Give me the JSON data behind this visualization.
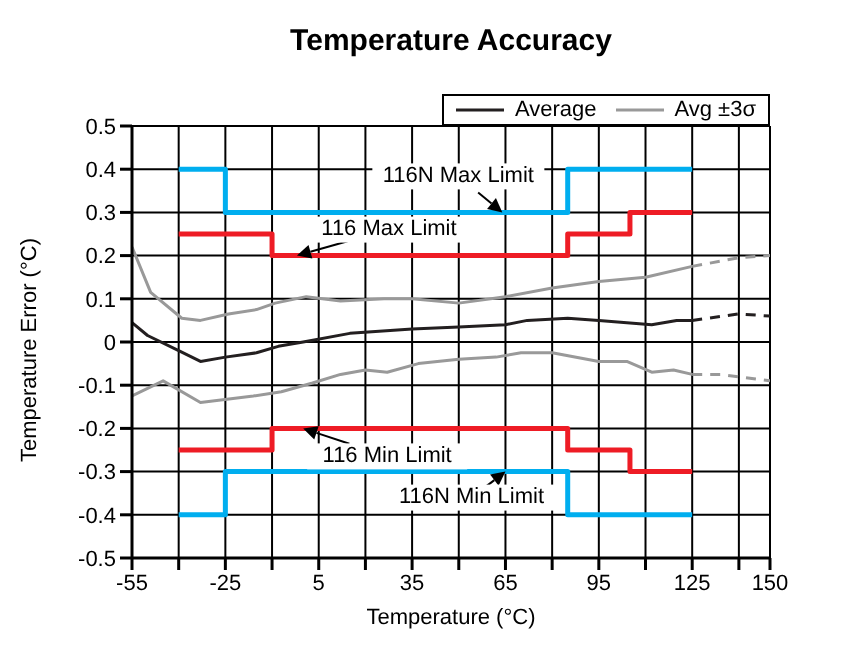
{
  "chart_data": {
    "type": "line",
    "title": "Temperature Accuracy",
    "xlabel": "Temperature (°C)",
    "ylabel": "Temperature Error (°C)",
    "xlim": [
      -55,
      150
    ],
    "xticks": [
      -55,
      {
        "value": -40,
        "label": null
      },
      -25,
      {
        "value": -10,
        "label": null
      },
      5,
      {
        "value": 20,
        "label": null
      },
      35,
      {
        "value": 50,
        "label": null
      },
      65,
      {
        "value": 80,
        "label": null
      },
      95,
      {
        "value": 110,
        "label": null
      },
      125,
      {
        "value": 140,
        "label": null
      },
      150
    ],
    "ylim": [
      -0.5,
      0.5
    ],
    "yticks": [
      -0.5,
      -0.4,
      -0.3,
      -0.2,
      -0.1,
      0,
      0.1,
      0.2,
      0.3,
      0.4,
      0.5
    ],
    "grid": true,
    "legend": "top right",
    "marker": "none",
    "series": [
      {
        "name": "Average",
        "color": "#231f20",
        "line_style": "solid",
        "x": [
          -55,
          -50,
          -40,
          -33,
          -25,
          -15,
          -8,
          0,
          15,
          35,
          50,
          65,
          72,
          85,
          95,
          112,
          120,
          125
        ],
        "values": [
          0.045,
          0.015,
          -0.02,
          -0.045,
          -0.035,
          -0.025,
          -0.01,
          0,
          0.02,
          0.03,
          0.035,
          0.04,
          0.05,
          0.055,
          0.05,
          0.04,
          0.05,
          0.05
        ]
      },
      {
        "color": "#231f20",
        "line_style": "dashed",
        "x": [
          125,
          140,
          150
        ],
        "values": [
          0.05,
          0.065,
          0.06
        ]
      },
      {
        "name": "Avg ±3σ",
        "color": "#999999",
        "line_style": "solid",
        "x": [
          -55,
          -49,
          -39,
          -33,
          -24,
          -15,
          -9,
          1,
          12,
          26,
          35,
          50,
          65,
          80,
          95,
          110,
          125
        ],
        "values": [
          0.22,
          0.115,
          0.055,
          0.05,
          0.065,
          0.075,
          0.09,
          0.105,
          0.095,
          0.1,
          0.1,
          0.09,
          0.105,
          0.125,
          0.14,
          0.15,
          0.175
        ]
      },
      {
        "color": "#999999",
        "line_style": "dashed",
        "x": [
          125,
          140,
          150
        ],
        "values": [
          0.175,
          0.195,
          0.2
        ]
      },
      {
        "color": "#999999",
        "line_style": "solid",
        "x": [
          -55,
          -45,
          -33,
          -16,
          -7,
          3,
          12,
          20,
          27,
          37,
          50,
          62,
          70,
          80,
          95,
          104,
          112,
          119,
          125
        ],
        "values": [
          -0.125,
          -0.09,
          -0.14,
          -0.125,
          -0.115,
          -0.095,
          -0.075,
          -0.065,
          -0.07,
          -0.05,
          -0.04,
          -0.035,
          -0.025,
          -0.025,
          -0.045,
          -0.045,
          -0.07,
          -0.065,
          -0.075
        ]
      },
      {
        "color": "#999999",
        "line_style": "dashed",
        "x": [
          125,
          134,
          150
        ],
        "values": [
          -0.075,
          -0.075,
          -0.09
        ]
      },
      {
        "type": "step",
        "color": "#00aeef",
        "line_style": "solid",
        "x": [
          -40,
          -25,
          85,
          125
        ],
        "values": [
          0.4,
          0.3,
          0.4,
          0.4
        ]
      },
      {
        "type": "step",
        "color": "#ee1c25",
        "line_style": "solid",
        "x": [
          -40,
          -10,
          85,
          105,
          125
        ],
        "values": [
          0.25,
          0.2,
          0.25,
          0.3,
          0.3
        ]
      },
      {
        "type": "step",
        "color": "#ee1c25",
        "line_style": "solid",
        "x": [
          -40,
          -10,
          85,
          105,
          125
        ],
        "values": [
          -0.25,
          -0.2,
          -0.25,
          -0.3,
          -0.3
        ]
      },
      {
        "type": "step",
        "color": "#00aeef",
        "line_style": "solid",
        "x": [
          -40,
          -25,
          85,
          125
        ],
        "values": [
          -0.4,
          -0.3,
          -0.4,
          -0.4
        ]
      }
    ],
    "annotations": [
      {
        "text": "116N Max Limit",
        "x": 64,
        "y": 0.3
      },
      {
        "text": "116 Max Limit",
        "x": -2,
        "y": 0.2
      },
      {
        "text": "116 Min Limit",
        "x": 0,
        "y": -0.2
      },
      {
        "text": "116N Min Limit",
        "x": 65,
        "y": -0.3
      }
    ]
  }
}
